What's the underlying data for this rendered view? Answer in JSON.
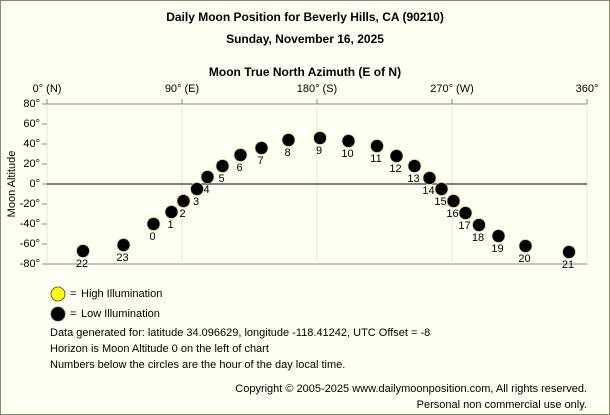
{
  "chart_data": {
    "type": "scatter",
    "title": "Daily Moon Position for Beverly Hills, CA (90210)",
    "subtitle": "Sunday, November 16, 2025",
    "x_label": "Moon True North Azimuth (E of N)",
    "y_label": "Moon Altitude",
    "xlim": [
      0,
      360
    ],
    "ylim": [
      -80,
      80
    ],
    "xticks": [
      {
        "value": 0,
        "label": "0° (N)"
      },
      {
        "value": 90,
        "label": "90° (E)"
      },
      {
        "value": 180,
        "label": "180° (S)"
      },
      {
        "value": 270,
        "label": "270° (W)"
      },
      {
        "value": 360,
        "label": "360°"
      }
    ],
    "yticks": [
      {
        "value": 80,
        "label": "80°"
      },
      {
        "value": 60,
        "label": "60°"
      },
      {
        "value": 40,
        "label": "40°"
      },
      {
        "value": 20,
        "label": "20°"
      },
      {
        "value": 0,
        "label": "0°"
      },
      {
        "value": -20,
        "label": "-20°"
      },
      {
        "value": -40,
        "label": "-40°"
      },
      {
        "value": -60,
        "label": "-60°"
      },
      {
        "value": -80,
        "label": "-80°"
      }
    ],
    "grid": true,
    "zero_line": true,
    "legend_separator": "=",
    "series": [
      {
        "name": "High Illumination",
        "color": "#ffff00",
        "x": [],
        "y": [],
        "hours": []
      },
      {
        "name": "Low Illumination",
        "color": "#000000",
        "x": [
          24,
          51,
          71,
          83,
          91,
          100,
          107,
          117,
          129,
          143,
          161,
          182,
          201,
          220,
          233,
          245,
          255,
          263,
          271,
          279,
          288,
          301,
          319,
          348
        ],
        "y": [
          -67,
          -61,
          -40,
          -28,
          -17,
          -5,
          7,
          18,
          29,
          36,
          44,
          46,
          43,
          38,
          28,
          18,
          6,
          -5,
          -17,
          -29,
          -41,
          -52,
          -62,
          -68
        ],
        "hours": [
          22,
          23,
          0,
          1,
          2,
          3,
          4,
          5,
          6,
          7,
          8,
          9,
          10,
          11,
          12,
          13,
          14,
          15,
          16,
          17,
          18,
          19,
          20,
          21
        ]
      }
    ],
    "notes": [
      "Data generated for: latitude 34.096629, longitude -118.41242, UTC Offset = -8",
      "Horizon is Moon Altitude 0 on the left of chart",
      "Numbers below the circles are the hour of the day local time."
    ],
    "footer": [
      "Copyright © 2005-2025 www.dailymoonposition.com, All rights reserved.",
      "Personal non commercial use only."
    ]
  }
}
